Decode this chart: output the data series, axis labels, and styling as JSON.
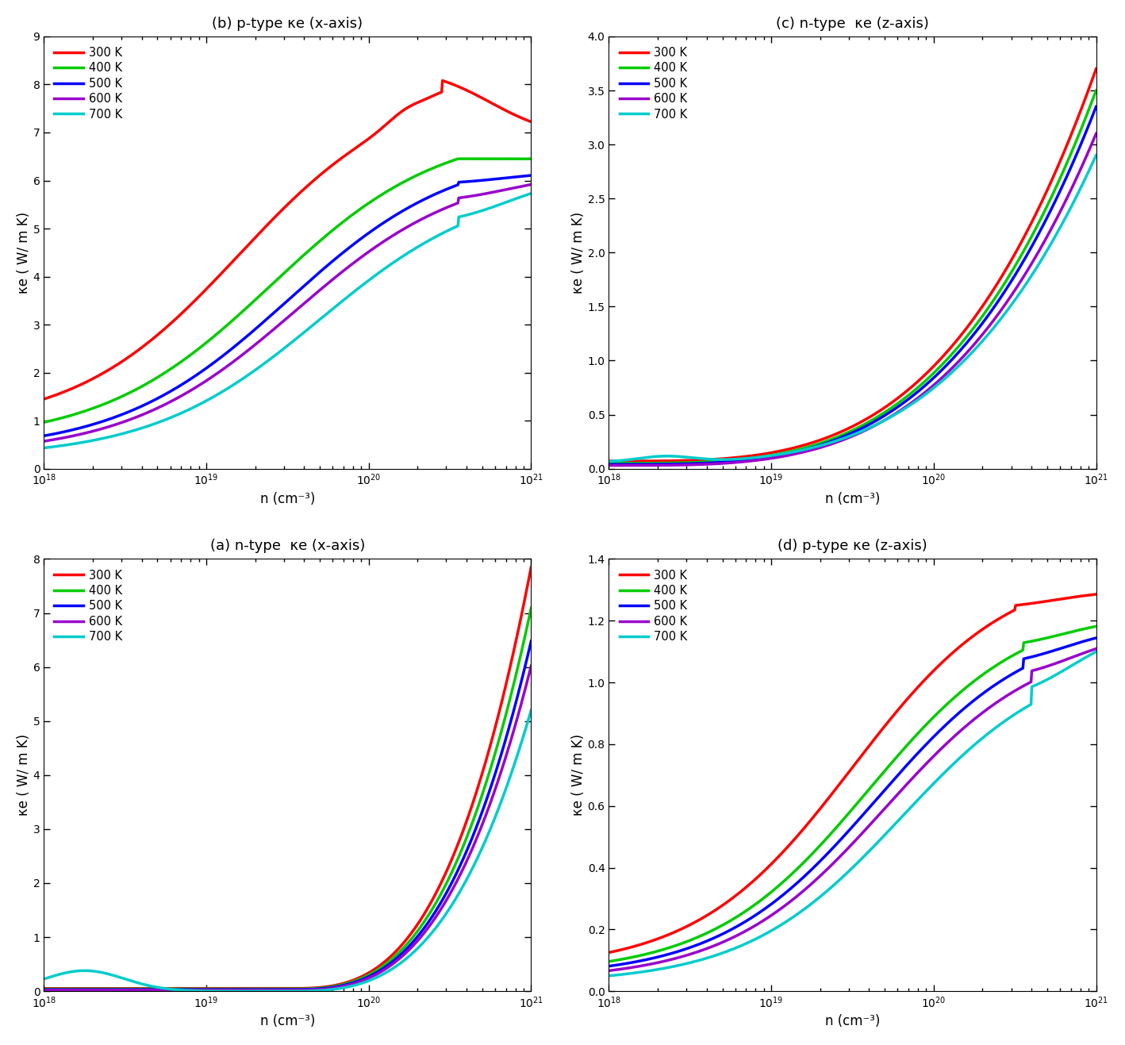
{
  "panels": {
    "b": {
      "title": "(b) p-type κe (x-axis)",
      "ylim": [
        0,
        9
      ],
      "yticks": [
        0,
        1,
        2,
        3,
        4,
        5,
        6,
        7,
        8,
        9
      ],
      "type": "p_x"
    },
    "c": {
      "title": "(c) n-type  κe (z-axis)",
      "ylim": [
        0,
        4
      ],
      "yticks": [
        0,
        0.5,
        1.0,
        1.5,
        2.0,
        2.5,
        3.0,
        3.5,
        4.0
      ],
      "type": "n_z"
    },
    "a": {
      "title": "(a) n-type  κe (x-axis)",
      "ylim": [
        0,
        8
      ],
      "yticks": [
        0,
        1,
        2,
        3,
        4,
        5,
        6,
        7,
        8
      ],
      "type": "n_x"
    },
    "d": {
      "title": "(d) p-type κe (z-axis)",
      "ylim": [
        0,
        1.4
      ],
      "yticks": [
        0,
        0.2,
        0.4,
        0.6,
        0.8,
        1.0,
        1.2,
        1.4
      ],
      "type": "p_z"
    }
  },
  "colors": {
    "300K": "#ff0000",
    "400K": "#00cc00",
    "500K": "#0000ff",
    "600K": "#9900cc",
    "700K": "#00cccc"
  },
  "temperatures": [
    "300 K",
    "400 K",
    "500 K",
    "600 K",
    "700 K"
  ],
  "temp_keys": [
    "300K",
    "400K",
    "500K",
    "600K",
    "700K"
  ],
  "xlabel": "n (cm⁻³)",
  "ylabel": "κe ( W/ m K)",
  "xlim_low": 1e+18,
  "xlim_high": 1e+21,
  "linewidth": 2.5
}
